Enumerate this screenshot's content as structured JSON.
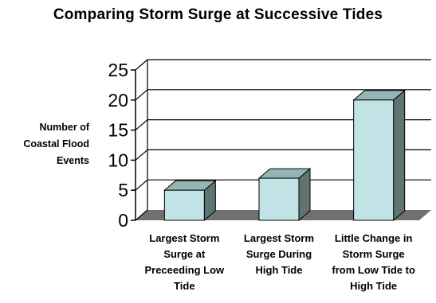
{
  "chart_data": {
    "type": "bar",
    "title": "Comparing Storm Surge at Successive Tides",
    "ylabel_lines": [
      "Number of",
      "Coastal Flood",
      "Events"
    ],
    "xlabel": "",
    "categories": [
      [
        "Largest Storm",
        "Surge at",
        "Preceeding Low",
        "Tide"
      ],
      [
        "Largest Storm",
        "Surge During",
        "High Tide"
      ],
      [
        "Little Change in",
        "Storm Surge",
        "from Low Tide to",
        "High Tide"
      ]
    ],
    "values": [
      5,
      7,
      20
    ],
    "ylim": [
      0,
      25
    ],
    "yticks": [
      "0",
      "5",
      "10",
      "15",
      "20",
      "25"
    ],
    "grid": true,
    "legend": "none",
    "colors": {
      "bar_front": "#c2e3e6",
      "bar_side": "#5f7473",
      "bar_top": "#95b4b4",
      "floor": "#707070",
      "wall_grid": "#000000"
    }
  }
}
